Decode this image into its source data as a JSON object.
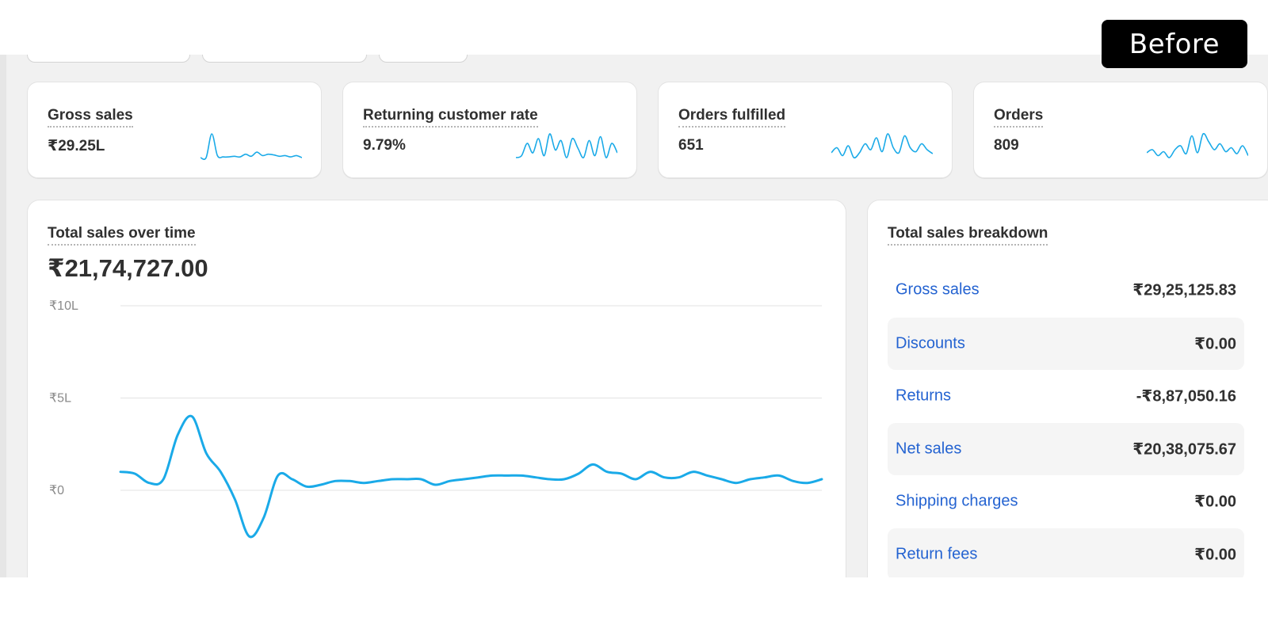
{
  "badge": {
    "label": "Before"
  },
  "kpis": [
    {
      "label": "Gross sales",
      "value": "₹29.25L"
    },
    {
      "label": "Returning customer rate",
      "value": "9.79%"
    },
    {
      "label": "Orders fulfilled",
      "value": "651"
    },
    {
      "label": "Orders",
      "value": "809"
    }
  ],
  "sales_card": {
    "title": "Total sales over time",
    "value": "₹21,74,727.00"
  },
  "breakdown": {
    "title": "Total sales breakdown",
    "rows": [
      {
        "label": "Gross sales",
        "value": "₹29,25,125.83"
      },
      {
        "label": "Discounts",
        "value": "₹0.00"
      },
      {
        "label": "Returns",
        "value": "-₹8,87,050.16"
      },
      {
        "label": "Net sales",
        "value": "₹20,38,075.67"
      },
      {
        "label": "Shipping charges",
        "value": "₹0.00"
      },
      {
        "label": "Return fees",
        "value": "₹0.00"
      }
    ]
  },
  "colors": {
    "accent": "#1aaae8",
    "link": "#2463d1",
    "background": "#f1f1f1"
  },
  "chart_data": {
    "type": "line",
    "ylim": [
      0,
      10
    ],
    "yticks": [
      0,
      5,
      10
    ],
    "ytick_labels": [
      "₹0",
      "₹5L",
      "₹10L"
    ],
    "grid": true,
    "series": [
      {
        "values": [
          1.0,
          0.9,
          0.4,
          0.6,
          3.0,
          4.0,
          2.0,
          1.0,
          -0.5,
          -2.5,
          -1.5,
          0.8,
          0.6,
          0.2,
          0.3,
          0.5,
          0.5,
          0.4,
          0.5,
          0.6,
          0.6,
          0.6,
          0.3,
          0.5,
          0.6,
          0.7,
          0.8,
          0.8,
          0.8,
          0.7,
          0.6,
          0.6,
          0.9,
          1.4,
          1.0,
          0.9,
          0.6,
          1.0,
          0.7,
          0.7,
          1.0,
          0.8,
          0.6,
          0.4,
          0.6,
          0.7,
          0.8,
          0.5,
          0.4,
          0.6
        ]
      }
    ]
  },
  "sparklines": [
    [
      0.5,
      0.5,
      4.0,
      0.8,
      0.6,
      0.6,
      0.7,
      0.6,
      1.0,
      0.7,
      1.3,
      0.8,
      1.0,
      0.9,
      0.7,
      0.8,
      0.6,
      0.8,
      0.5
    ],
    [
      1.0,
      1.2,
      2.5,
      1.5,
      3.0,
      1.2,
      3.5,
      1.8,
      2.8,
      1.0,
      3.0,
      2.0,
      1.0,
      2.8,
      1.2,
      3.2,
      1.0,
      2.5,
      1.5
    ],
    [
      1.5,
      2.0,
      1.2,
      2.2,
      1.0,
      1.5,
      2.4,
      1.8,
      3.0,
      1.6,
      3.4,
      2.0,
      1.5,
      3.2,
      2.0,
      1.6,
      2.4,
      1.8,
      1.4
    ],
    [
      1.5,
      1.8,
      1.2,
      1.6,
      1.0,
      1.8,
      2.2,
      1.4,
      3.2,
      1.5,
      3.4,
      2.6,
      1.8,
      2.4,
      1.6,
      2.0,
      1.4,
      2.2,
      1.2
    ]
  ]
}
